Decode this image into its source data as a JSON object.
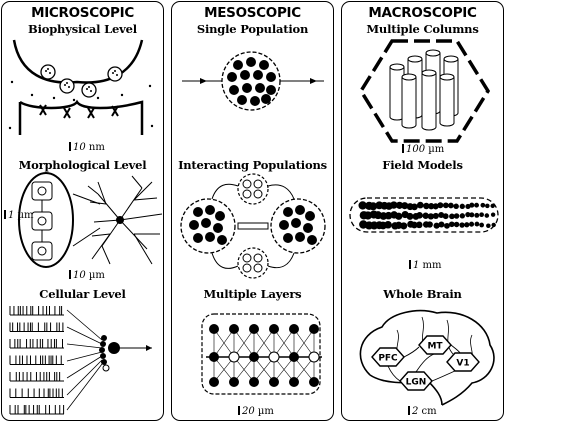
{
  "panels": {
    "micro": {
      "title": "MICROSCOPIC",
      "sub1": "Biophysical Level",
      "scale1_num": "10",
      "scale1_unit": " nm",
      "sub2": "Morphological Level",
      "scale2a_num": "1",
      "scale2a_unit": " µm",
      "scale2b_num": "10",
      "scale2b_unit": " µm",
      "sub3": "Cellular Level"
    },
    "meso": {
      "title": "MESOSCOPIC",
      "sub1": "Single Population",
      "sub2": "Interacting Populations",
      "sub3": "Multiple Layers",
      "scale_num": "20",
      "scale_unit": " µm"
    },
    "macro": {
      "title": "MACROSCOPIC",
      "sub1": "Multiple Columns",
      "scale1_num": "100",
      "scale1_unit": " µm",
      "sub2": "Field Models",
      "scale2_num": "1",
      "scale2_unit": " mm",
      "sub3": "Whole Brain",
      "scale3_num": "2",
      "scale3_unit": " cm",
      "brain_regions": [
        "PFC",
        "MT",
        "V1",
        "LGN"
      ]
    }
  }
}
